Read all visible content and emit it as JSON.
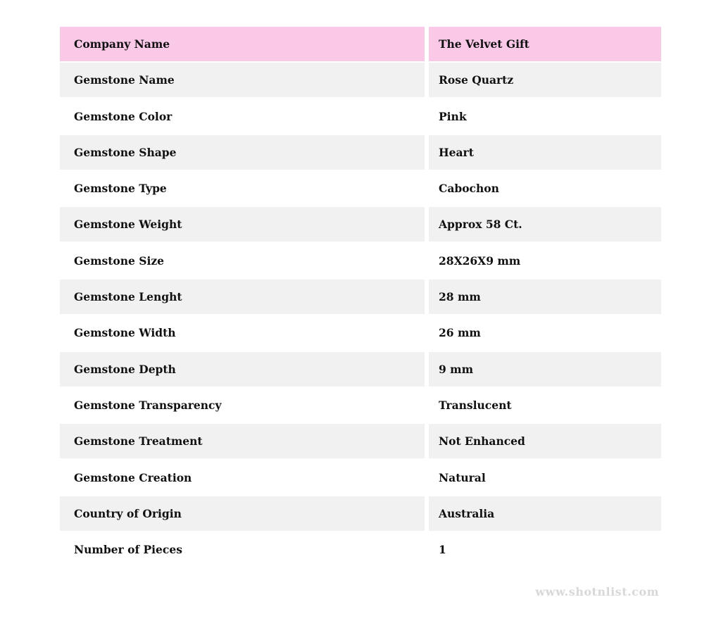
{
  "table": {
    "header": {
      "label": "Company Name",
      "value": "The Velvet Gift"
    },
    "rows": [
      {
        "label": "Gemstone Name",
        "value": "Rose Quartz"
      },
      {
        "label": "Gemstone Color",
        "value": "Pink"
      },
      {
        "label": "Gemstone Shape",
        "value": "Heart"
      },
      {
        "label": "Gemstone Type",
        "value": "Cabochon"
      },
      {
        "label": "Gemstone Weight",
        "value": "Approx 58 Ct."
      },
      {
        "label": "Gemstone Size",
        "value": "28X26X9 mm"
      },
      {
        "label": "Gemstone Lenght",
        "value": "28 mm"
      },
      {
        "label": "Gemstone Width",
        "value": "26 mm"
      },
      {
        "label": "Gemstone Depth",
        "value": "9 mm"
      },
      {
        "label": "Gemstone Transparency",
        "value": "Translucent"
      },
      {
        "label": "Gemstone Treatment",
        "value": "Not Enhanced"
      },
      {
        "label": "Gemstone Creation",
        "value": "Natural"
      },
      {
        "label": "Country of Origin",
        "value": "Australia"
      },
      {
        "label": "Number of Pieces",
        "value": "1"
      }
    ]
  },
  "footer": {
    "watermark": "www.shotnlist.com"
  },
  "colors": {
    "header_bg": "#fac9e8",
    "row_alt_bg": "#f1f1f1",
    "row_bg": "#ffffff",
    "text": "#111111",
    "watermark_text": "#d8d8d8"
  }
}
